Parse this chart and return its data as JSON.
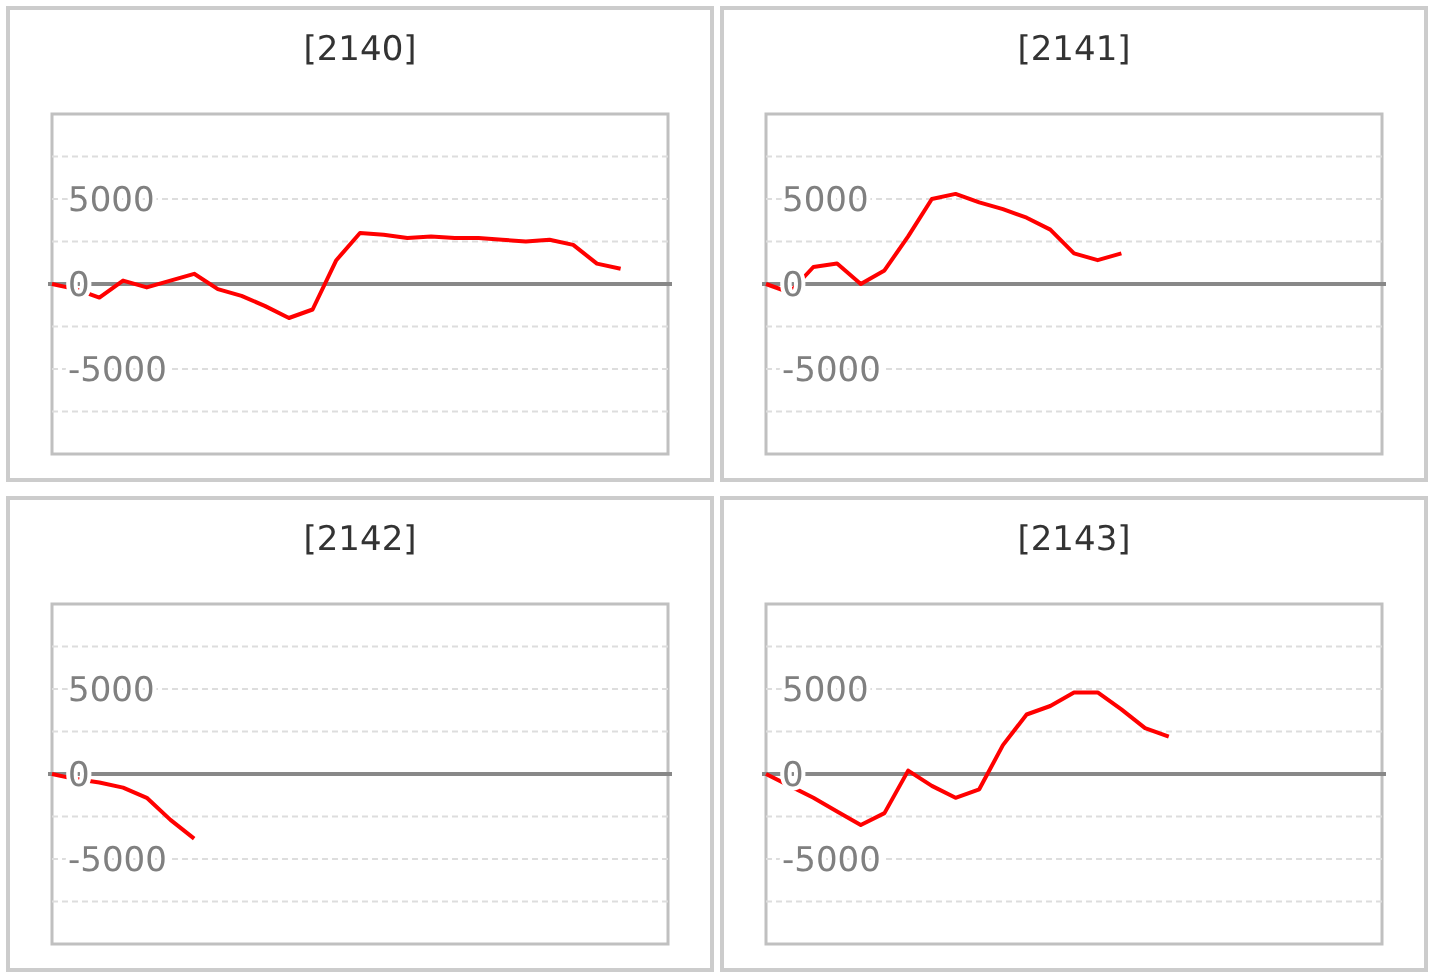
{
  "chart_data": [
    {
      "type": "line",
      "title": "[2140]",
      "categories": [
        null,
        null,
        null,
        null,
        null,
        null,
        null,
        null,
        null,
        null,
        null,
        null,
        null,
        null,
        null,
        null,
        null,
        null,
        null,
        null,
        null,
        null,
        null,
        null,
        null,
        null,
        null
      ],
      "series": [
        {
          "color": "#ff0000",
          "values": [
            0,
            -300,
            -800,
            200,
            -200,
            200,
            600,
            -300,
            -700,
            -1300,
            -2000,
            -1500,
            1400,
            3000,
            2900,
            2700,
            2800,
            2700,
            2700,
            2600,
            2500,
            2600,
            2300,
            1200,
            900,
            null,
            null
          ]
        }
      ],
      "ylim": [
        -10000,
        10000
      ],
      "yticks": [
        {
          "value": 7500,
          "label": null
        },
        5000,
        {
          "value": 2500,
          "label": null
        },
        0,
        {
          "value": -2500,
          "label": null
        },
        -5000,
        {
          "value": -7500,
          "label": null
        }
      ],
      "grid": "y",
      "tick_labels": "y"
    },
    {
      "type": "line",
      "title": "[2141]",
      "categories": [
        null,
        null,
        null,
        null,
        null,
        null,
        null,
        null,
        null,
        null,
        null,
        null,
        null,
        null,
        null,
        null,
        null,
        null,
        null,
        null,
        null,
        null,
        null,
        null,
        null,
        null,
        null
      ],
      "series": [
        {
          "color": "#ff0000",
          "values": [
            0,
            -500,
            1000,
            1200,
            0,
            800,
            2800,
            5000,
            5300,
            4800,
            4400,
            3900,
            3200,
            1800,
            1400,
            1800,
            null,
            null,
            null,
            null,
            null,
            null,
            null,
            null,
            null,
            null,
            null
          ]
        }
      ],
      "ylim": [
        -10000,
        10000
      ],
      "yticks": [
        {
          "value": 7500,
          "label": null
        },
        5000,
        {
          "value": 2500,
          "label": null
        },
        0,
        {
          "value": -2500,
          "label": null
        },
        -5000,
        {
          "value": -7500,
          "label": null
        }
      ],
      "grid": "y",
      "tick_labels": "y"
    },
    {
      "type": "line",
      "title": "[2142]",
      "categories": [
        null,
        null,
        null,
        null,
        null,
        null,
        null,
        null,
        null,
        null,
        null,
        null,
        null,
        null,
        null,
        null,
        null,
        null,
        null,
        null,
        null,
        null,
        null,
        null,
        null,
        null,
        null
      ],
      "series": [
        {
          "color": "#ff0000",
          "values": [
            0,
            -300,
            -500,
            -800,
            -1400,
            -2700,
            -3800,
            null,
            null,
            null,
            null,
            null,
            null,
            null,
            null,
            null,
            null,
            null,
            null,
            null,
            null,
            null,
            null,
            null,
            null,
            null,
            null
          ]
        }
      ],
      "ylim": [
        -10000,
        10000
      ],
      "yticks": [
        {
          "value": 7500,
          "label": null
        },
        5000,
        {
          "value": 2500,
          "label": null
        },
        0,
        {
          "value": -2500,
          "label": null
        },
        -5000,
        {
          "value": -7500,
          "label": null
        }
      ],
      "grid": "y",
      "tick_labels": "y"
    },
    {
      "type": "line",
      "title": "[2143]",
      "categories": [
        null,
        null,
        null,
        null,
        null,
        null,
        null,
        null,
        null,
        null,
        null,
        null,
        null,
        null,
        null,
        null,
        null,
        null,
        null,
        null,
        null,
        null,
        null,
        null,
        null,
        null,
        null
      ],
      "series": [
        {
          "color": "#ff0000",
          "values": [
            0,
            -700,
            -1400,
            -2200,
            -3000,
            -2300,
            200,
            -700,
            -1400,
            -900,
            1700,
            3500,
            4000,
            4800,
            4800,
            3800,
            2700,
            2200,
            null,
            null,
            null,
            null,
            null,
            null,
            null,
            null,
            null
          ]
        }
      ],
      "ylim": [
        -10000,
        10000
      ],
      "yticks": [
        {
          "value": 7500,
          "label": null
        },
        5000,
        {
          "value": 2500,
          "label": null
        },
        0,
        {
          "value": -2500,
          "label": null
        },
        -5000,
        {
          "value": -7500,
          "label": null
        }
      ],
      "grid": "y",
      "tick_labels": "y"
    }
  ]
}
